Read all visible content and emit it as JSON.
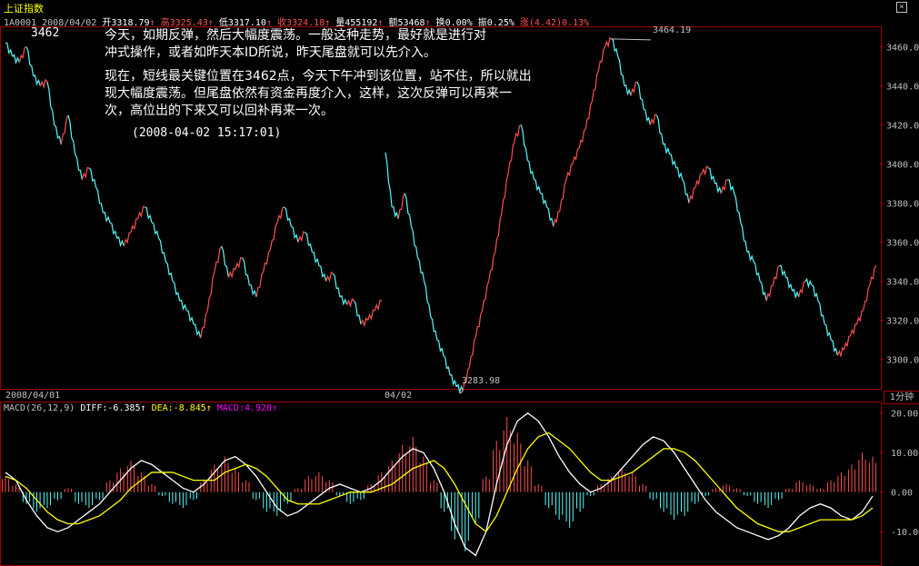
{
  "window": {
    "title": "上证指数",
    "close_glyph": "×"
  },
  "stats": {
    "code_date": "1A0001 2008/04/02",
    "open": "开3318.79",
    "high": "高3325.43",
    "low": "低3317.10",
    "close": "收3324.18",
    "volume": "量455192",
    "amount": "额53468",
    "turnover": "换0.00%",
    "amplitude": "振0.25%",
    "change": "涨(4.42)0.13%"
  },
  "annotation": {
    "line1": "今天，如期反弹，然后大幅度震荡。一般这种走势，最好就是进行对",
    "line2": "冲式操作，或者如昨天本ID所说，昨天尾盘就可以先介入。",
    "line3": "现在，短线最关键位置在3462点，今天下午冲到该位置，站不住，所以就出",
    "line4": "现大幅度震荡。但尾盘依然有资金再度介入，这样，这次反弹可以再来一",
    "line5": "次，高位出的下来又可以回补再来一次。",
    "timestamp": "(2008-04-02 15:17:01)"
  },
  "marks": {
    "left_peak": "3462",
    "high_label": "3464.19",
    "low_label": "3283.98"
  },
  "x_axis": {
    "left": "2008/04/01",
    "mid": "04/02"
  },
  "period_button": "1分钟",
  "macd_header": {
    "params": "MACD(26,12,9)",
    "diff": "DIFF:-6.385↑",
    "dea": "DEA:-8.845↑",
    "macd": "MACD:4.920↑"
  },
  "colors": {
    "up": "#ff5050",
    "down": "#54fcfc",
    "frame": "#a00000",
    "diff_line": "#ffffff",
    "dea_line": "#ffff00",
    "macd_text": "#ff00ff"
  },
  "chart_data": [
    {
      "type": "line",
      "subtype": "candlestick-minute",
      "title": "上证指数",
      "ylim": [
        3285,
        3470
      ],
      "y_ticks": [
        "3460.0",
        "3440.0",
        "3420.0",
        "3400.0",
        "3380.0",
        "3360.0",
        "3340.0",
        "3320.0",
        "3300.0"
      ],
      "y_tick_values": [
        3460,
        3440,
        3420,
        3400,
        3380,
        3360,
        3340,
        3320,
        3300
      ],
      "x_labels": [
        "2008/04/01",
        "04/02"
      ],
      "day1_index": [
        3462,
        3455,
        3452,
        3460,
        3445,
        3440,
        3442,
        3420,
        3410,
        3425,
        3405,
        3392,
        3398,
        3388,
        3375,
        3370,
        3362,
        3358,
        3365,
        3372,
        3378,
        3370,
        3362,
        3350,
        3340,
        3330,
        3325,
        3318,
        3311,
        3325,
        3345,
        3358,
        3342,
        3346,
        3352,
        3338,
        3332,
        3345,
        3356,
        3370,
        3378,
        3368,
        3360,
        3365,
        3355,
        3348,
        3340,
        3344,
        3332,
        3328,
        3330,
        3318,
        3320,
        3325,
        3330
      ],
      "day2_index": [
        3406,
        3378,
        3372,
        3385,
        3368,
        3352,
        3340,
        3322,
        3310,
        3302,
        3292,
        3286,
        3284,
        3296,
        3312,
        3325,
        3340,
        3355,
        3375,
        3395,
        3412,
        3420,
        3402,
        3392,
        3385,
        3378,
        3368,
        3376,
        3392,
        3400,
        3408,
        3418,
        3432,
        3448,
        3460,
        3464,
        3455,
        3440,
        3435,
        3442,
        3428,
        3420,
        3425,
        3410,
        3405,
        3398,
        3392,
        3380,
        3388,
        3395,
        3398,
        3390,
        3385,
        3392,
        3385,
        3370,
        3355,
        3350,
        3340,
        3330,
        3338,
        3348,
        3342,
        3335,
        3332,
        3340,
        3338,
        3330,
        3318,
        3310,
        3302,
        3305,
        3312,
        3318,
        3325,
        3338,
        3348
      ],
      "annotations": [
        "3462",
        "3464.19",
        "3283.98"
      ]
    },
    {
      "type": "bar",
      "subtype": "macd",
      "title": "MACD(26,12,9)",
      "ylim": [
        -18,
        22
      ],
      "y_ticks": [
        "20.00",
        "10.00",
        "0.00",
        "-10.00"
      ],
      "y_tick_values": [
        20,
        10,
        0,
        -10
      ],
      "macd_hist": [
        4,
        2,
        -3,
        -5,
        -4,
        -2,
        1,
        -3,
        -4,
        -2,
        3,
        6,
        8,
        5,
        2,
        -1,
        -3,
        -4,
        -2,
        3,
        7,
        9,
        6,
        3,
        -2,
        -5,
        -6,
        -3,
        1,
        4,
        5,
        3,
        -1,
        -3,
        -2,
        2,
        5,
        8,
        12,
        14,
        9,
        3,
        -5,
        -12,
        -15,
        -8,
        4,
        13,
        19,
        15,
        8,
        2,
        -4,
        -7,
        -9,
        -5,
        -1,
        2,
        4,
        6,
        5,
        2,
        -2,
        -5,
        -7,
        -6,
        -3,
        -1,
        1,
        2,
        1,
        -1,
        -3,
        -4,
        -2,
        1,
        3,
        2,
        1,
        3,
        5,
        7,
        10,
        9
      ],
      "diff": [
        5,
        3,
        -2,
        -6,
        -9,
        -10,
        -9,
        -7,
        -5,
        -3,
        0,
        3,
        6,
        8,
        7,
        5,
        3,
        1,
        0,
        2,
        5,
        8,
        9,
        7,
        4,
        0,
        -4,
        -6,
        -5,
        -3,
        -1,
        1,
        2,
        1,
        0,
        1,
        3,
        6,
        9,
        11,
        10,
        6,
        0,
        -8,
        -14,
        -16,
        -10,
        2,
        12,
        18,
        20,
        18,
        14,
        9,
        5,
        2,
        0,
        1,
        3,
        6,
        9,
        12,
        14,
        13,
        10,
        6,
        2,
        -2,
        -5,
        -7,
        -9,
        -10,
        -11,
        -12,
        -11,
        -9,
        -6,
        -4,
        -3,
        -4,
        -6,
        -7,
        -5,
        -1
      ],
      "dea": [
        4,
        3,
        1,
        -2,
        -5,
        -7,
        -8,
        -8,
        -7,
        -6,
        -4,
        -2,
        1,
        3,
        5,
        5,
        5,
        4,
        3,
        3,
        3,
        5,
        6,
        7,
        6,
        4,
        1,
        -2,
        -3,
        -3,
        -3,
        -2,
        -1,
        0,
        0,
        0,
        1,
        2,
        4,
        6,
        7,
        8,
        6,
        2,
        -3,
        -8,
        -10,
        -6,
        0,
        6,
        11,
        14,
        15,
        13,
        11,
        8,
        5,
        3,
        3,
        4,
        5,
        7,
        9,
        11,
        11,
        10,
        8,
        5,
        2,
        -1,
        -4,
        -6,
        -8,
        -9,
        -10,
        -10,
        -9,
        -8,
        -7,
        -7,
        -7,
        -7,
        -6,
        -4
      ]
    }
  ]
}
